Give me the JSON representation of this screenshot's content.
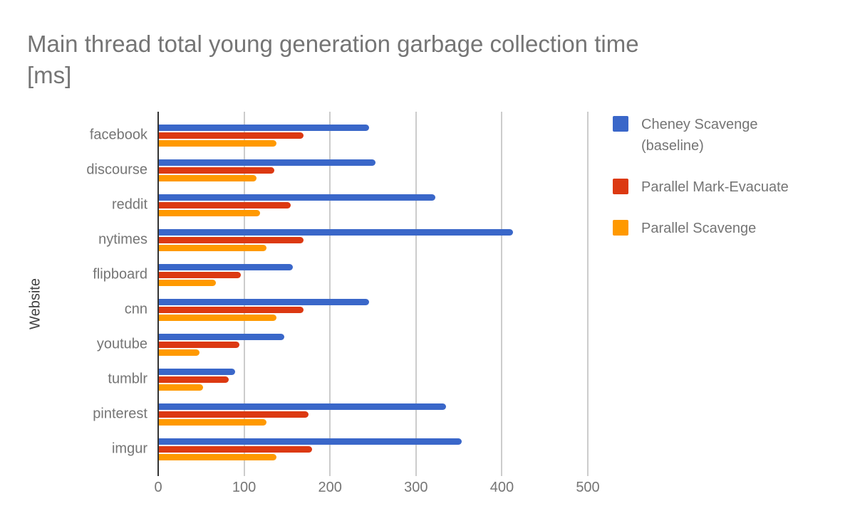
{
  "header": {
    "title_display": "Main thread total young generation garbage collection time\n[ms]"
  },
  "chart_data": {
    "type": "bar",
    "orientation": "horizontal",
    "title": "Main thread total young generation garbage collection time [ms]",
    "xlabel": "",
    "ylabel": "Website",
    "unit": "ms",
    "xlim": [
      0,
      500
    ],
    "xticks": [
      0,
      100,
      200,
      300,
      400,
      500
    ],
    "grid": true,
    "legend_position": "right",
    "categories": [
      "facebook",
      "discourse",
      "reddit",
      "nytimes",
      "flipboard",
      "cnn",
      "youtube",
      "tumblr",
      "pinterest",
      "imgur"
    ],
    "series": [
      {
        "name": "Cheney Scavenge (baseline)",
        "color": "#3A67C9",
        "values": [
          245,
          252,
          322,
          412,
          156,
          245,
          146,
          89,
          334,
          352
        ]
      },
      {
        "name": "Parallel Mark-Evacuate",
        "color": "#DC3912",
        "values": [
          168,
          134,
          153,
          168,
          95,
          168,
          94,
          81,
          174,
          178
        ]
      },
      {
        "name": "Parallel Scavenge",
        "color": "#FF9900",
        "values": [
          137,
          114,
          118,
          125,
          66,
          137,
          47,
          51,
          125,
          137
        ]
      }
    ]
  }
}
